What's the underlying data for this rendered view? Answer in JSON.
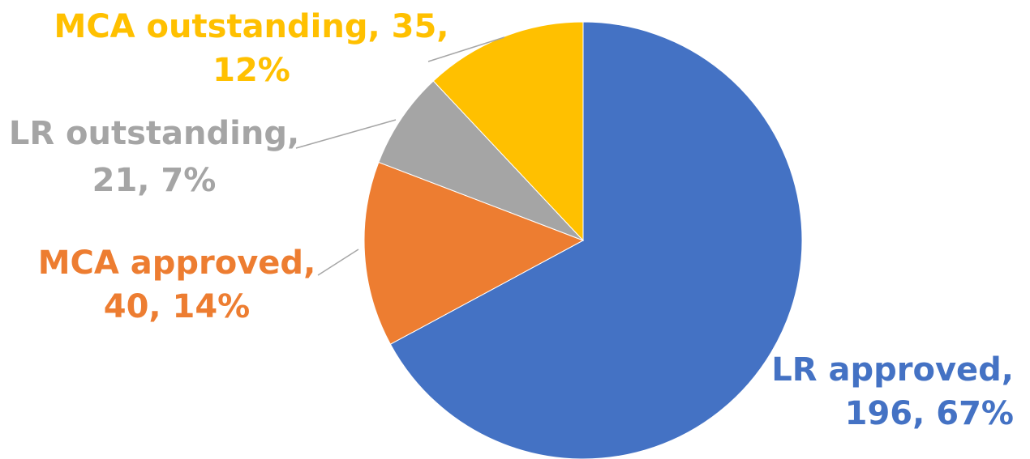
{
  "chart_data": {
    "type": "pie",
    "title": "",
    "start_angle_deg": 0,
    "direction": "clockwise",
    "slices": [
      {
        "category": "LR approved",
        "value": 196,
        "percent": 67,
        "label_lines": [
          "LR approved,",
          "196, 67%"
        ],
        "color": "#4472C4"
      },
      {
        "category": "MCA approved",
        "value": 40,
        "percent": 14,
        "label_lines": [
          "MCA approved,",
          "40, 14%"
        ],
        "color": "#ED7D31"
      },
      {
        "category": "LR outstanding",
        "value": 21,
        "percent": 7,
        "label_lines": [
          "LR outstanding,",
          "21, 7%"
        ],
        "color": "#A5A5A5"
      },
      {
        "category": "MCA outstanding",
        "value": 35,
        "percent": 12,
        "label_lines": [
          "MCA outstanding, 35,",
          "12%"
        ],
        "color": "#FFC000"
      }
    ],
    "leader_line_color": "#A6A6A6"
  }
}
